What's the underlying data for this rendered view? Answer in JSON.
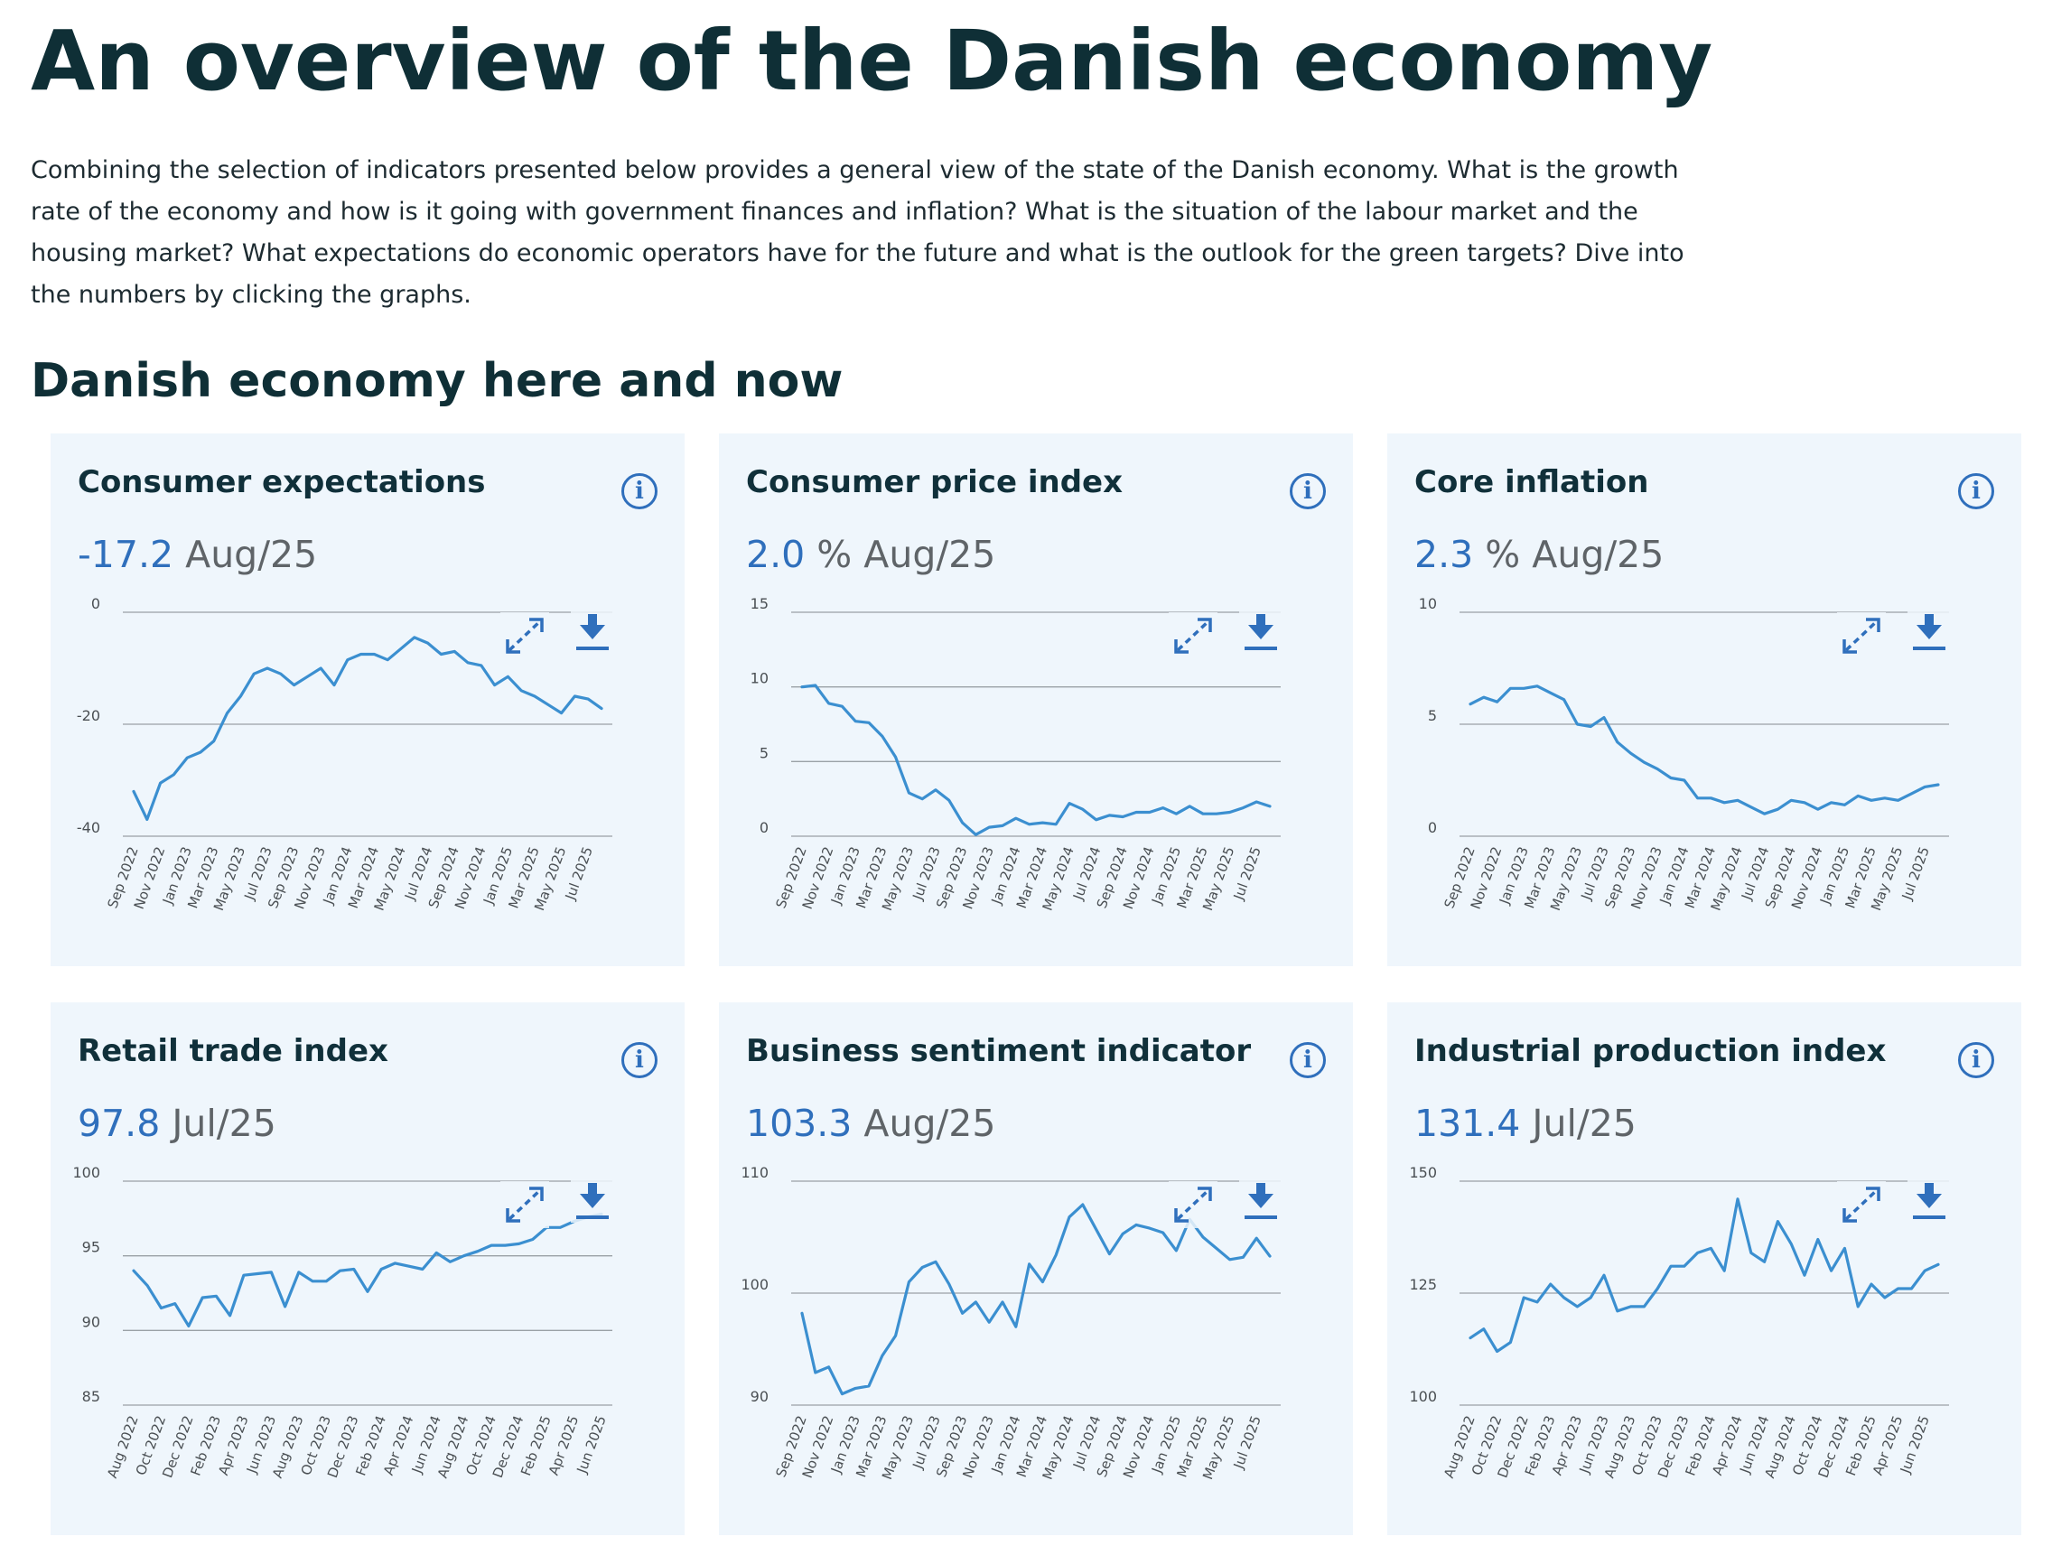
{
  "page": {
    "title": "An overview of the Danish economy",
    "intro": "Combining the selection of indicators presented below provides a general view of the state of the Danish economy. What is the growth rate of the economy and how is it going with government finances and inflation? What is the situation of the labour market and the housing market? What expectations do economic operators have for the future and what is the outlook for the green targets? Dive into the numbers by clicking the graphs.",
    "section_title": "Danish economy here and now"
  },
  "colors": {
    "line": "#3b8fd0",
    "accent": "#2f6fbc",
    "card_bg": "#eff6fc",
    "grid": "#9aa1a6"
  },
  "icons": {
    "info": "info-icon",
    "expand": "expand-icon",
    "download": "download-icon",
    "info_glyph": "i"
  },
  "chart_data": [
    {
      "type": "line",
      "title": "Consumer expectations",
      "value": "-17.2",
      "unit": "",
      "period": "Aug/25",
      "ylim": [
        -40,
        0
      ],
      "yticks": [
        0,
        -20,
        -40
      ],
      "xtick_labels": [
        "Sep 2022",
        "Nov 2022",
        "Jan 2023",
        "Mar 2023",
        "May 2023",
        "Jul 2023",
        "Sep 2023",
        "Nov 2023",
        "Jan 2024",
        "Mar 2024",
        "May 2024",
        "Jul 2024",
        "Sep 2024",
        "Nov 2024",
        "Jan 2025",
        "Mar 2025",
        "May 2025",
        "Jul 2025"
      ],
      "x_start": "Sep 2022",
      "values": [
        -32,
        -37,
        -30.5,
        -29,
        -26,
        -25,
        -23,
        -18,
        -15,
        -11,
        -10,
        -11,
        -13,
        -11.5,
        -10,
        -13,
        -8.5,
        -7.5,
        -7.5,
        -8.5,
        -6.5,
        -4.5,
        -5.5,
        -7.5,
        -7,
        -9,
        -9.5,
        -13,
        -11.5,
        -14,
        -15,
        -16.5,
        -18,
        -15,
        -15.5,
        -17.2
      ]
    },
    {
      "type": "line",
      "title": "Consumer price index",
      "value": "2.0",
      "unit": "%",
      "period": "Aug/25",
      "ylim": [
        0,
        15
      ],
      "yticks": [
        15,
        10,
        5,
        0
      ],
      "xtick_labels": [
        "Sep 2022",
        "Nov 2022",
        "Jan 2023",
        "Mar 2023",
        "May 2023",
        "Jul 2023",
        "Sep 2023",
        "Nov 2023",
        "Jan 2024",
        "Mar 2024",
        "May 2024",
        "Jul 2024",
        "Sep 2024",
        "Nov 2024",
        "Jan 2025",
        "Mar 2025",
        "May 2025",
        "Jul 2025"
      ],
      "x_start": "Sep 2022",
      "values": [
        10.0,
        10.1,
        8.9,
        8.7,
        7.7,
        7.6,
        6.7,
        5.3,
        2.9,
        2.5,
        3.1,
        2.4,
        0.9,
        0.1,
        0.6,
        0.7,
        1.2,
        0.8,
        0.9,
        0.8,
        2.2,
        1.8,
        1.1,
        1.4,
        1.3,
        1.6,
        1.6,
        1.9,
        1.5,
        2.0,
        1.5,
        1.5,
        1.6,
        1.9,
        2.3,
        2.0
      ]
    },
    {
      "type": "line",
      "title": "Core inflation",
      "value": "2.3",
      "unit": "%",
      "period": "Aug/25",
      "ylim": [
        0,
        10
      ],
      "yticks": [
        10,
        5,
        0
      ],
      "xtick_labels": [
        "Sep 2022",
        "Nov 2022",
        "Jan 2023",
        "Mar 2023",
        "May 2023",
        "Jul 2023",
        "Sep 2023",
        "Nov 2023",
        "Jan 2024",
        "Mar 2024",
        "May 2024",
        "Jul 2024",
        "Sep 2024",
        "Nov 2024",
        "Jan 2025",
        "Mar 2025",
        "May 2025",
        "Jul 2025"
      ],
      "x_start": "Sep 2022",
      "values": [
        5.9,
        6.2,
        6.0,
        6.6,
        6.6,
        6.7,
        6.4,
        6.1,
        5.0,
        4.9,
        5.3,
        4.2,
        3.7,
        3.3,
        3.0,
        2.6,
        2.5,
        1.7,
        1.7,
        1.5,
        1.6,
        1.3,
        1.0,
        1.2,
        1.6,
        1.5,
        1.2,
        1.5,
        1.4,
        1.8,
        1.6,
        1.7,
        1.6,
        1.9,
        2.2,
        2.3
      ]
    },
    {
      "type": "line",
      "title": "Retail trade index",
      "value": "97.8",
      "unit": "",
      "period": "Jul/25",
      "ylim": [
        85,
        100
      ],
      "yticks": [
        100,
        95,
        90,
        85
      ],
      "xtick_labels": [
        "Aug 2022",
        "Oct 2022",
        "Dec 2022",
        "Feb 2023",
        "Apr 2023",
        "Jun 2023",
        "Aug 2023",
        "Oct 2023",
        "Dec 2023",
        "Feb 2024",
        "Apr 2024",
        "Jun 2024",
        "Aug 2024",
        "Oct 2024",
        "Dec 2024",
        "Feb 2025",
        "Apr 2025",
        "Jun 2025"
      ],
      "x_start": "Aug 2022",
      "values": [
        94.0,
        93.0,
        91.5,
        91.8,
        90.3,
        92.2,
        92.3,
        91.0,
        93.7,
        93.8,
        93.9,
        91.6,
        93.9,
        93.3,
        93.3,
        94.0,
        94.1,
        92.6,
        94.1,
        94.5,
        94.3,
        94.1,
        95.2,
        94.6,
        95.0,
        95.3,
        95.7,
        95.7,
        95.8,
        96.1,
        96.9,
        96.9,
        97.3,
        97.6,
        97.8
      ]
    },
    {
      "type": "line",
      "title": "Business sentiment indicator",
      "value": "103.3",
      "unit": "",
      "period": "Aug/25",
      "ylim": [
        90,
        110
      ],
      "yticks": [
        110,
        100,
        90
      ],
      "xtick_labels": [
        "Sep 2022",
        "Nov 2022",
        "Jan 2023",
        "Mar 2023",
        "May 2023",
        "Jul 2023",
        "Sep 2023",
        "Nov 2023",
        "Jan 2024",
        "Mar 2024",
        "May 2024",
        "Jul 2024",
        "Sep 2024",
        "Nov 2024",
        "Jan 2025",
        "Mar 2025",
        "May 2025",
        "Jul 2025"
      ],
      "x_start": "Sep 2022",
      "values": [
        98.2,
        92.9,
        93.4,
        91.0,
        91.5,
        91.7,
        94.4,
        96.2,
        101.0,
        102.3,
        102.8,
        100.8,
        98.2,
        99.2,
        97.4,
        99.2,
        97.0,
        102.6,
        101.0,
        103.4,
        106.8,
        107.9,
        105.7,
        103.5,
        105.3,
        106.1,
        105.8,
        105.4,
        103.8,
        106.6,
        105.0,
        104.0,
        103.0,
        103.2,
        104.9,
        103.3
      ]
    },
    {
      "type": "line",
      "title": "Industrial production index",
      "value": "131.4",
      "unit": "",
      "period": "Jul/25",
      "ylim": [
        100,
        150
      ],
      "yticks": [
        150,
        125,
        100
      ],
      "xtick_labels": [
        "Aug 2022",
        "Oct 2022",
        "Dec 2022",
        "Feb 2023",
        "Apr 2023",
        "Jun 2023",
        "Aug 2023",
        "Oct 2023",
        "Dec 2023",
        "Feb 2024",
        "Apr 2024",
        "Jun 2024",
        "Aug 2024",
        "Oct 2024",
        "Dec 2024",
        "Feb 2025",
        "Apr 2025",
        "Jun 2025"
      ],
      "x_start": "Aug 2022",
      "values": [
        115,
        117,
        112,
        114,
        124,
        123,
        127,
        124,
        122,
        124,
        129,
        121,
        122,
        122,
        126,
        131,
        131,
        134,
        135,
        130,
        146,
        134,
        132,
        141,
        136,
        129,
        137,
        130,
        135,
        122,
        127,
        124,
        126,
        126,
        130,
        131.4
      ]
    }
  ]
}
